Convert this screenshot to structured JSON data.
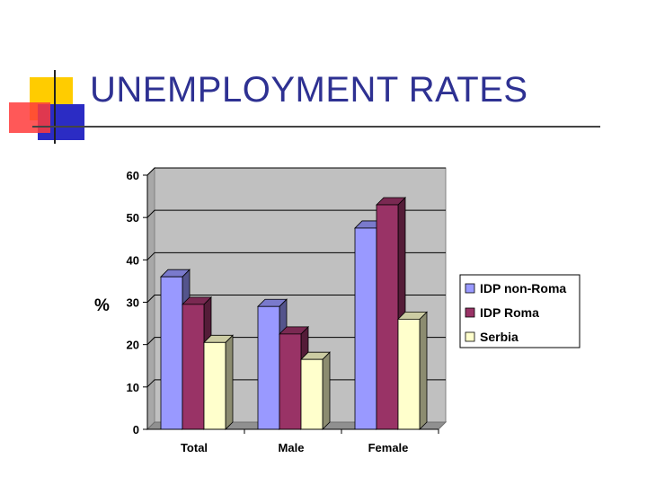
{
  "slide": {
    "title": "UNEMPLOYMENT RATES"
  },
  "colors": {
    "title": "#2e3192",
    "plot_background": "#c0c0c0",
    "series": [
      "#9999ff",
      "#993366",
      "#ffffcc"
    ]
  },
  "chart_data": {
    "type": "bar",
    "style": "3d-clustered-column",
    "categories": [
      "Total",
      "Male",
      "Female"
    ],
    "series": [
      {
        "name": "IDP non-Roma",
        "values": [
          36,
          29,
          47.5
        ]
      },
      {
        "name": "IDP Roma",
        "values": [
          29.5,
          22.5,
          53
        ]
      },
      {
        "name": "Serbia",
        "values": [
          20.5,
          16.5,
          26
        ]
      }
    ],
    "title": "",
    "xlabel": "",
    "ylabel": "%",
    "ylim": [
      0,
      60
    ],
    "yticks": [
      "0",
      "10",
      "20",
      "30",
      "40",
      "50",
      "60"
    ],
    "grid": true,
    "legend_position": "right"
  }
}
